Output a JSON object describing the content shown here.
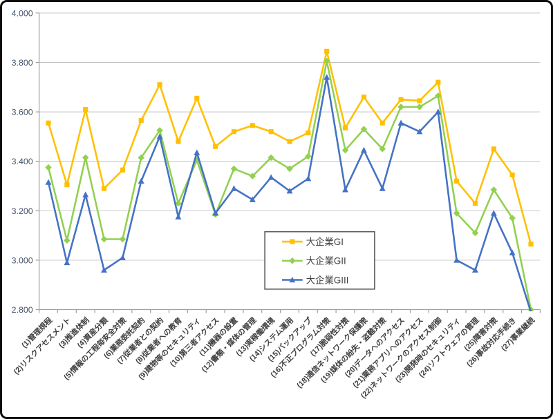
{
  "chart_data": {
    "type": "line",
    "title": "",
    "xlabel": "",
    "ylabel": "",
    "ylim": [
      2.8,
      4.0
    ],
    "ytick_step": 0.2,
    "ytick_labels": [
      "2.800",
      "3.000",
      "3.200",
      "3.400",
      "3.600",
      "3.800",
      "4.000"
    ],
    "grid": true,
    "legend_position": "inside-center-bottom-box",
    "categories": [
      "(1)管理規程",
      "(2)リスクアセスメント",
      "(3)推進体制",
      "(4)資産分類",
      "(5)情報の工程毎安全対策",
      "(6)業務委託契約",
      "(7)従業者との契約",
      "(8)従業者への教育",
      "(9)建物等のセキュリティ",
      "(10)第三者アクセス",
      "(11)機器の設置",
      "(12)書類・媒体の管理",
      "(13)実稼働環境",
      "(14)システム運用",
      "(15)バックアップ",
      "(16)不正プログラム対策",
      "(17)脆弱性対策",
      "(18)通信ネットワーク保護策",
      "(19)媒体の紛失・盗難対策",
      "(20)データへのアクセス",
      "(21)業務アプリへのアクセス",
      "(22)ネットワークのアクセス制御",
      "(23)開発時のセキュリティ",
      "(24)ソフトウェアの管理",
      "(25)障害対策",
      "(26)事故対応手続き",
      "(27)事業継続"
    ],
    "series": [
      {
        "name": "大企業GI",
        "color": "#FFC000",
        "marker": "square",
        "values": [
          3.555,
          3.305,
          3.61,
          3.29,
          3.365,
          3.565,
          3.71,
          3.48,
          3.655,
          3.46,
          3.52,
          3.545,
          3.52,
          3.48,
          3.515,
          3.845,
          3.535,
          3.66,
          3.555,
          3.65,
          3.645,
          3.72,
          3.32,
          3.23,
          3.45,
          3.345,
          3.065
        ]
      },
      {
        "name": "大企業GII",
        "color": "#92D050",
        "marker": "diamond",
        "values": [
          3.375,
          3.08,
          3.415,
          3.085,
          3.085,
          3.415,
          3.525,
          3.23,
          3.405,
          3.185,
          3.37,
          3.34,
          3.415,
          3.37,
          3.42,
          3.805,
          3.445,
          3.53,
          3.45,
          3.62,
          3.62,
          3.665,
          3.19,
          3.11,
          3.285,
          3.17,
          2.8
        ]
      },
      {
        "name": "大企業GIII",
        "color": "#4472C4",
        "marker": "triangle",
        "values": [
          3.315,
          2.99,
          3.265,
          2.96,
          3.01,
          3.32,
          3.5,
          3.175,
          3.435,
          3.19,
          3.29,
          3.245,
          3.335,
          3.28,
          3.33,
          3.74,
          3.285,
          3.445,
          3.29,
          3.555,
          3.52,
          3.6,
          3.0,
          2.96,
          3.19,
          3.03,
          2.79
        ]
      }
    ]
  },
  "styles": {
    "background": "#ffffff",
    "frame_border": "#0b0b0b",
    "grid_color": "#c3c3c3",
    "axis_color": "#9e9e9e",
    "ytick_label_color": "#44546a",
    "xtick_label_color": "#3f3f3f",
    "legend_border": "#595959",
    "legend_text_color": "#404040"
  }
}
